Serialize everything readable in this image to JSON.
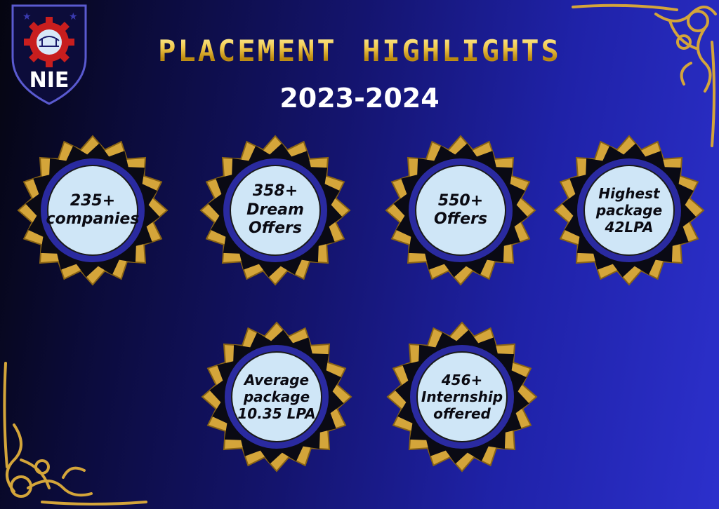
{
  "logo": {
    "text": "NIE",
    "icon": "nie-shield-gear-icon"
  },
  "header": {
    "title": "PLACEMENT HIGHLIGHTS",
    "year": "2023-2024"
  },
  "badges": [
    {
      "text": "235+\ncompanies"
    },
    {
      "text": "358+\nDream\nOffers"
    },
    {
      "text": "550+\nOffers"
    },
    {
      "text": "Highest\npackage\n42LPA"
    },
    {
      "text": "Average\npackage\n10.35 LPA"
    },
    {
      "text": "456+\nInternship\noffered"
    }
  ],
  "colors": {
    "gold": "#d4a53a",
    "badge_fill": "#cfe6f7",
    "ring": "#2a2aa0",
    "background_dark": "#050510",
    "background_light": "#2c30cc"
  }
}
